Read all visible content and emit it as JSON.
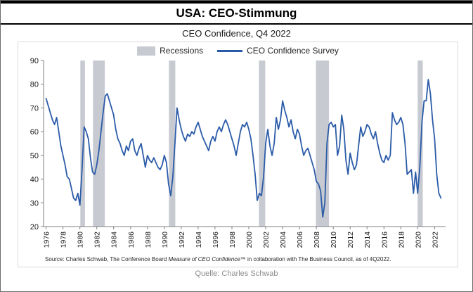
{
  "header": {
    "title": "USA: CEO-Stimmung"
  },
  "footer": "Quelle: Charles Schwab",
  "source_note": {
    "prefix": "Source: Charles Schwab, The Conference Board ",
    "italic": "Measure of CEO Confidence™",
    "suffix": " in collaboration with The Business Council, as of 4Q2022."
  },
  "chart_data": {
    "type": "line",
    "title": "CEO Confidence, Q4 2022",
    "series_name": "CEO Confidence Survey",
    "legend": [
      "Recessions",
      "CEO Confidence Survey"
    ],
    "legend_position": "top",
    "grid": false,
    "x_start": 1976.0,
    "x_step": 0.25,
    "x_end": 2022.75,
    "xlim": [
      1975.7,
      2023.3
    ],
    "ylim": [
      20,
      90
    ],
    "yticks": [
      20,
      30,
      40,
      50,
      60,
      70,
      80,
      90
    ],
    "xticks": [
      1976,
      1978,
      1980,
      1982,
      1984,
      1986,
      1988,
      1990,
      1992,
      1994,
      1996,
      1998,
      2000,
      2002,
      2004,
      2006,
      2008,
      2010,
      2012,
      2014,
      2016,
      2018,
      2020,
      2022
    ],
    "recessions": [
      [
        1980.05,
        1980.6
      ],
      [
        1981.55,
        1982.95
      ],
      [
        1990.55,
        1991.3
      ],
      [
        2001.2,
        2001.95
      ],
      [
        2007.95,
        2009.5
      ],
      [
        2020.0,
        2020.6
      ]
    ],
    "values": [
      74,
      71,
      68,
      65,
      63,
      66,
      60,
      54,
      50,
      46,
      41,
      40,
      36,
      32,
      31,
      34,
      29,
      44,
      62,
      60,
      57,
      49,
      43,
      42,
      46,
      52,
      60,
      68,
      75,
      76,
      73,
      70,
      67,
      61,
      57,
      55,
      52,
      50,
      54,
      52,
      56,
      57,
      52,
      50,
      53,
      55,
      50,
      45,
      50,
      48,
      47,
      49,
      47,
      45,
      44,
      46,
      50,
      47,
      38,
      33,
      41,
      55,
      70,
      65,
      61,
      58,
      56,
      59,
      58,
      60,
      59,
      62,
      64,
      61,
      58,
      56,
      54,
      52,
      56,
      58,
      56,
      60,
      62,
      60,
      63,
      65,
      63,
      60,
      57,
      54,
      50,
      55,
      60,
      63,
      62,
      64,
      61,
      57,
      50,
      42,
      31,
      34,
      33,
      41,
      55,
      61,
      54,
      50,
      55,
      66,
      61,
      65,
      73,
      69,
      66,
      62,
      65,
      60,
      57,
      61,
      59,
      54,
      50,
      52,
      53,
      50,
      47,
      44,
      39,
      38,
      35,
      24,
      30,
      55,
      63,
      64,
      62,
      63,
      50,
      54,
      67,
      61,
      48,
      42,
      51,
      47,
      44,
      46,
      54,
      62,
      58,
      60,
      63,
      62,
      59,
      57,
      60,
      55,
      51,
      48,
      47,
      50,
      48,
      50,
      68,
      65,
      63,
      64,
      66,
      63,
      55,
      42,
      43,
      44,
      34,
      43,
      34,
      45,
      64,
      73,
      73,
      82,
      76,
      65,
      57,
      42,
      34,
      32
    ],
    "colors": {
      "line": "#2b5ba8",
      "recession": "#c7cad1",
      "axis": "#7f7f7f",
      "tick_label": "#1a1a1a"
    }
  }
}
